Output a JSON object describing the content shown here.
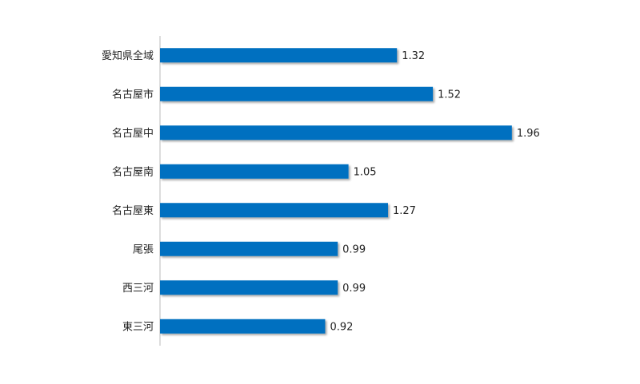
{
  "chart_data": {
    "type": "bar",
    "orientation": "horizontal",
    "categories": [
      "愛知県全域",
      "名古屋市",
      "名古屋中",
      "名古屋南",
      "名古屋東",
      "尾張",
      "西三河",
      "東三河"
    ],
    "values": [
      1.32,
      1.52,
      1.96,
      1.05,
      1.27,
      0.99,
      0.99,
      0.92
    ],
    "color": "#0070c0",
    "xlim": [
      0,
      2.5
    ]
  }
}
